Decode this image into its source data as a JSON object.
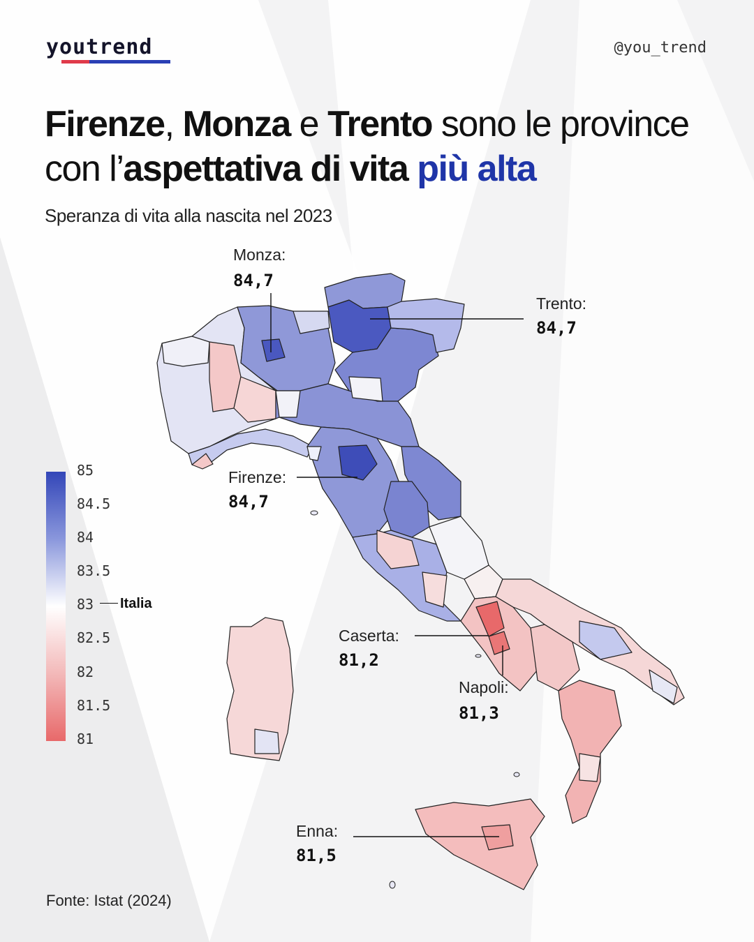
{
  "brand": {
    "logo_text": "youtrend",
    "handle": "@you_trend"
  },
  "title": {
    "part1_bold": "Firenze",
    "part2": ", ",
    "part3_bold": "Monza",
    "part4": " e ",
    "part5_bold": "Trento",
    "part6": " sono le province con l’",
    "part7_bold": "aspettativa di vita",
    "part8": " ",
    "part9_highlight": "più alta"
  },
  "subtitle": "Speranza di vita alla nascita nel 2023",
  "annotations": [
    {
      "name": "Monza:",
      "value": "84,7"
    },
    {
      "name": "Trento:",
      "value": "84,7"
    },
    {
      "name": "Firenze:",
      "value": "84,7"
    },
    {
      "name": "Caserta:",
      "value": "81,2"
    },
    {
      "name": "Napoli:",
      "value": "81,3"
    },
    {
      "name": "Enna:",
      "value": "81,5"
    }
  ],
  "legend": {
    "ticks": [
      "85",
      "84.5",
      "84",
      "83.5",
      "83",
      "82.5",
      "82",
      "81.5",
      "81"
    ],
    "reference_label": "Italia",
    "color_high": "#3346b8",
    "color_mid": "#ffffff",
    "color_low": "#e8696a"
  },
  "source": "Fonte: Istat  (2024)",
  "colors": {
    "highlight": "#1f35a8",
    "logo_red": "#e03a4a",
    "logo_blue": "#2a3fb5"
  }
}
